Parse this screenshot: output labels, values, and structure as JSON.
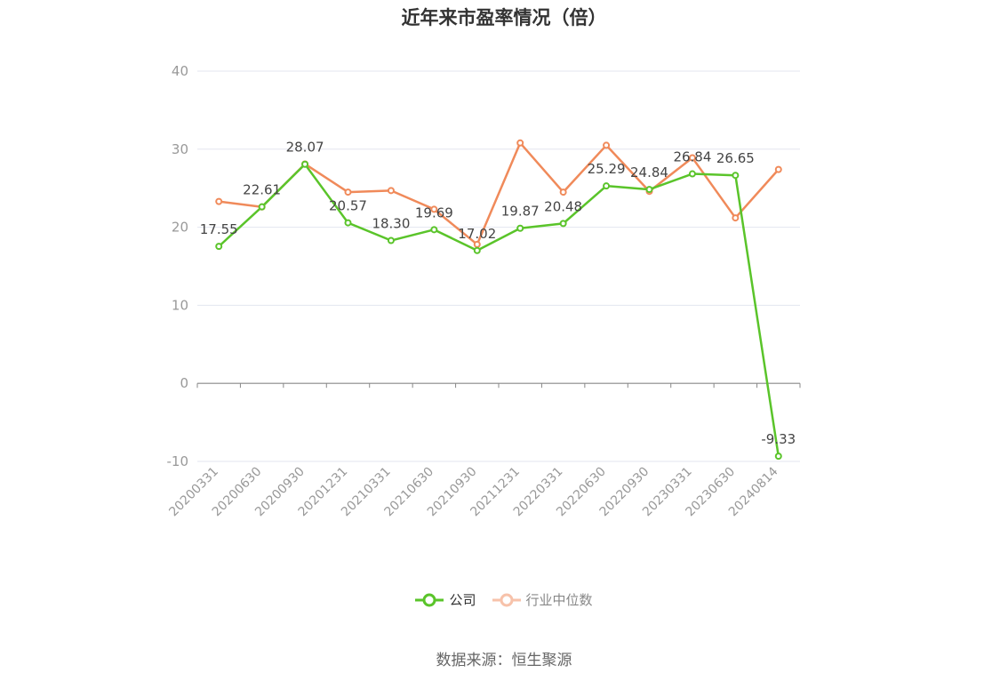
{
  "chart_data": {
    "type": "line",
    "title": "近年来市盈率情况（倍）",
    "categories": [
      "20200331",
      "20200630",
      "20200930",
      "20201231",
      "20210331",
      "20210630",
      "20210930",
      "20211231",
      "20220331",
      "20220630",
      "20220930",
      "20230331",
      "20230630",
      "20240814"
    ],
    "series": [
      {
        "name": "公司",
        "color": "#5ac42a",
        "values": [
          17.55,
          22.61,
          28.07,
          20.57,
          18.3,
          19.69,
          17.02,
          19.87,
          20.48,
          25.29,
          24.84,
          26.84,
          26.65,
          -9.33
        ],
        "labels": [
          "17.55",
          "22.61",
          "28.07",
          "20.57",
          "18.30",
          "19.69",
          "17.02",
          "19.87",
          "20.48",
          "25.29",
          "24.84",
          "26.84",
          "26.65",
          "-9.33"
        ]
      },
      {
        "name": "行业中位数",
        "color": "#f08a5a",
        "values": [
          23.3,
          22.6,
          28.1,
          24.5,
          24.7,
          22.3,
          17.8,
          30.8,
          24.5,
          30.5,
          24.6,
          28.9,
          21.2,
          27.4
        ]
      }
    ],
    "yticks": [
      "40",
      "30",
      "20",
      "10",
      "0",
      "-10"
    ],
    "ylim": [
      -10,
      40
    ],
    "grid": true,
    "legend_position": "bottom-center"
  },
  "legend": {
    "company_label": "公司",
    "industry_label": "行业中位数"
  },
  "source": "数据来源：恒生聚源"
}
